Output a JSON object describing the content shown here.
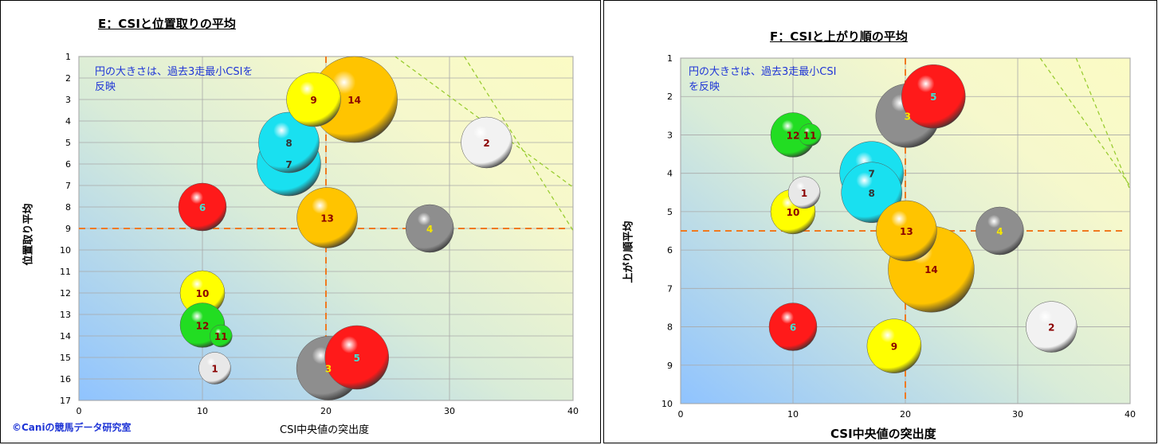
{
  "copyright": "©Caniの競馬データ研究室",
  "chart_data": [
    {
      "type": "scatter",
      "title": "E：CSIと位置取りの平均",
      "xlabel": "CSI中央値の突出度",
      "ylabel": "位置取り平均",
      "note": "円の大きさは、過去3走最小CSIを\n反映",
      "xlim": [
        0,
        40
      ],
      "ylim": [
        1,
        17
      ],
      "y_reversed": true,
      "xticks": [
        "0",
        "10",
        "20",
        "30",
        "40"
      ],
      "yticks": [
        "1",
        "2",
        "3",
        "4",
        "5",
        "6",
        "7",
        "8",
        "9",
        "10",
        "11",
        "12",
        "13",
        "14",
        "15",
        "16",
        "17"
      ],
      "grid": true,
      "ref_lines": {
        "x": 20,
        "y": 9
      },
      "points": [
        {
          "label": "1",
          "x": 11,
          "y": 15.5,
          "size": 1.0,
          "color": "#e8e8e8",
          "label_color": "#8b0000"
        },
        {
          "label": "2",
          "x": 33,
          "y": 5,
          "size": 1.6,
          "color": "#f2f2f2",
          "label_color": "#8b0000"
        },
        {
          "label": "3",
          "x": 20.2,
          "y": 15.5,
          "size": 2.0,
          "color": "#8e8e8e",
          "label_color": "#f5e600"
        },
        {
          "label": "4",
          "x": 28.4,
          "y": 9,
          "size": 1.5,
          "color": "#8e8e8e",
          "label_color": "#f5e600"
        },
        {
          "label": "5",
          "x": 22.5,
          "y": 15,
          "size": 2.0,
          "color": "#ff1a1a",
          "label_color": "#40e0d0"
        },
        {
          "label": "6",
          "x": 10,
          "y": 8,
          "size": 1.5,
          "color": "#ff1a1a",
          "label_color": "#40e0d0"
        },
        {
          "label": "7",
          "x": 17,
          "y": 6,
          "size": 2.0,
          "color": "#19e0f0",
          "label_color": "#333333"
        },
        {
          "label": "8",
          "x": 17,
          "y": 5,
          "size": 1.9,
          "color": "#19e0f0",
          "label_color": "#333333"
        },
        {
          "label": "9",
          "x": 19,
          "y": 3,
          "size": 1.7,
          "color": "#ffff00",
          "label_color": "#8b0000"
        },
        {
          "label": "10",
          "x": 10,
          "y": 12,
          "size": 1.4,
          "color": "#ffff00",
          "label_color": "#8b0000"
        },
        {
          "label": "11",
          "x": 11.5,
          "y": 14,
          "size": 0.7,
          "color": "#22dd22",
          "label_color": "#8b0000"
        },
        {
          "label": "12",
          "x": 10,
          "y": 13.5,
          "size": 1.4,
          "color": "#22dd22",
          "label_color": "#8b0000"
        },
        {
          "label": "13",
          "x": 20.1,
          "y": 8.5,
          "size": 1.9,
          "color": "#ffc400",
          "label_color": "#8b0000"
        },
        {
          "label": "14",
          "x": 22.3,
          "y": 3,
          "size": 2.7,
          "color": "#ffc400",
          "label_color": "#8b0000"
        }
      ]
    },
    {
      "type": "scatter",
      "title": "F：CSIと上がり順の平均",
      "xlabel": "CSI中央値の突出度",
      "ylabel": "上がり順平均",
      "note": "円の大きさは、過去3走最小CSI\nを反映",
      "xlim": [
        0,
        40
      ],
      "ylim": [
        1,
        10
      ],
      "y_reversed": true,
      "xticks": [
        "0",
        "10",
        "20",
        "30",
        "40"
      ],
      "yticks": [
        "1",
        "2",
        "3",
        "4",
        "5",
        "6",
        "7",
        "8",
        "9",
        "10"
      ],
      "grid": true,
      "ref_lines": {
        "x": 20,
        "y": 5.5
      },
      "points": [
        {
          "label": "1",
          "x": 11,
          "y": 4.5,
          "size": 1.0,
          "color": "#e8e8e8",
          "label_color": "#8b0000"
        },
        {
          "label": "2",
          "x": 33,
          "y": 8,
          "size": 1.6,
          "color": "#f2f2f2",
          "label_color": "#8b0000"
        },
        {
          "label": "3",
          "x": 20.2,
          "y": 2.5,
          "size": 2.0,
          "color": "#8e8e8e",
          "label_color": "#f5e600"
        },
        {
          "label": "4",
          "x": 28.4,
          "y": 5.5,
          "size": 1.5,
          "color": "#8e8e8e",
          "label_color": "#f5e600"
        },
        {
          "label": "5",
          "x": 22.5,
          "y": 2,
          "size": 2.0,
          "color": "#ff1a1a",
          "label_color": "#40e0d0"
        },
        {
          "label": "6",
          "x": 10,
          "y": 8,
          "size": 1.5,
          "color": "#ff1a1a",
          "label_color": "#40e0d0"
        },
        {
          "label": "7",
          "x": 17,
          "y": 4,
          "size": 2.0,
          "color": "#19e0f0",
          "label_color": "#333333"
        },
        {
          "label": "8",
          "x": 17,
          "y": 4.5,
          "size": 1.9,
          "color": "#19e0f0",
          "label_color": "#333333"
        },
        {
          "label": "9",
          "x": 19,
          "y": 8.5,
          "size": 1.7,
          "color": "#ffff00",
          "label_color": "#8b0000"
        },
        {
          "label": "10",
          "x": 10,
          "y": 5,
          "size": 1.4,
          "color": "#ffff00",
          "label_color": "#8b0000"
        },
        {
          "label": "11",
          "x": 11.5,
          "y": 3,
          "size": 0.7,
          "color": "#22dd22",
          "label_color": "#8b0000"
        },
        {
          "label": "12",
          "x": 10,
          "y": 3,
          "size": 1.4,
          "color": "#22dd22",
          "label_color": "#8b0000"
        },
        {
          "label": "13",
          "x": 20.1,
          "y": 5.5,
          "size": 1.9,
          "color": "#ffc400",
          "label_color": "#8b0000"
        },
        {
          "label": "14",
          "x": 22.3,
          "y": 6.5,
          "size": 2.7,
          "color": "#ffc400",
          "label_color": "#8b0000"
        }
      ]
    }
  ]
}
